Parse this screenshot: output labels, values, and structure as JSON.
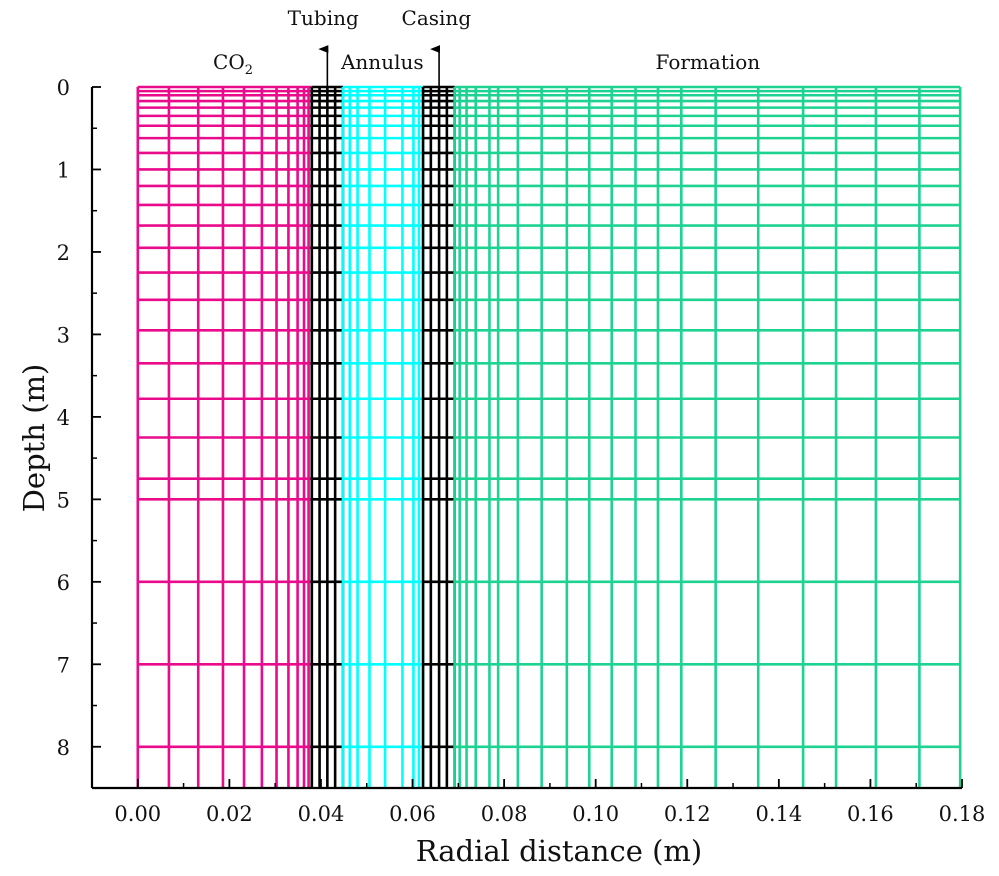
{
  "chart_data": {
    "type": "grid-mesh",
    "xlabel": "Radial distance (m)",
    "ylabel": "Depth (m)",
    "xlim": [
      -0.01,
      0.18
    ],
    "ylim": [
      0,
      8.5
    ],
    "y_inverted": true,
    "x_ticks": [
      0.0,
      0.02,
      0.04,
      0.06,
      0.08,
      0.1,
      0.12,
      0.14,
      0.16,
      0.18
    ],
    "x_tick_labels": [
      "0.00",
      "0.02",
      "0.04",
      "0.06",
      "0.08",
      "0.10",
      "0.12",
      "0.14",
      "0.16",
      "0.18"
    ],
    "y_ticks": [
      0,
      1,
      2,
      3,
      4,
      5,
      6,
      7,
      8
    ],
    "y_tick_labels": [
      "0",
      "1",
      "2",
      "3",
      "4",
      "5",
      "6",
      "7",
      "8"
    ],
    "depth_lines": [
      0.0,
      0.05,
      0.1,
      0.17,
      0.25,
      0.35,
      0.47,
      0.62,
      0.8,
      1.0,
      1.2,
      1.43,
      1.68,
      1.95,
      2.25,
      2.58,
      2.95,
      3.35,
      3.78,
      4.25,
      4.75,
      5.0,
      6.0,
      7.0,
      8.0
    ],
    "depth_max": 8.5,
    "regions": [
      {
        "name": "CO2",
        "color": "#ea0a8c",
        "r_lines": [
          0.0,
          0.0068,
          0.0132,
          0.0186,
          0.0232,
          0.0271,
          0.0303,
          0.0329,
          0.0349,
          0.0363,
          0.0373,
          0.038
        ]
      },
      {
        "name": "Tubing",
        "color": "#000000",
        "r_lines": [
          0.038,
          0.0397,
          0.0414,
          0.0431,
          0.0448
        ]
      },
      {
        "name": "Annulus",
        "color": "#00ffff",
        "r_lines": [
          0.0448,
          0.0463,
          0.048,
          0.0506,
          0.054,
          0.0578,
          0.0602,
          0.0614,
          0.0623
        ]
      },
      {
        "name": "Casing",
        "color": "#000000",
        "r_lines": [
          0.0623,
          0.064,
          0.0658,
          0.0675,
          0.0692
        ]
      },
      {
        "name": "Formation",
        "color": "#1ed392",
        "r_lines": [
          0.0692,
          0.0703,
          0.0718,
          0.0738,
          0.0768,
          0.0787,
          0.083,
          0.0882,
          0.0937,
          0.0986,
          0.1035,
          0.1087,
          0.1136,
          0.1187,
          0.1262,
          0.1355,
          0.1453,
          0.1525,
          0.1612,
          0.1707,
          0.1796
        ]
      }
    ],
    "region_labels": [
      {
        "text": "CO",
        "sub": "2",
        "x": 0.0208,
        "depth": -0.22
      },
      {
        "text": "Annulus",
        "x": 0.0534,
        "depth": -0.22
      },
      {
        "text": "Formation",
        "x": 0.1245,
        "depth": -0.22
      },
      {
        "text": "Tubing",
        "x": 0.0405,
        "depth": -0.75
      },
      {
        "text": "Casing",
        "x": 0.0652,
        "depth": -0.75
      }
    ],
    "arrows": [
      {
        "name": "tubing-arrow",
        "x": 0.0414
      },
      {
        "name": "casing-arrow",
        "x": 0.0658
      }
    ]
  }
}
